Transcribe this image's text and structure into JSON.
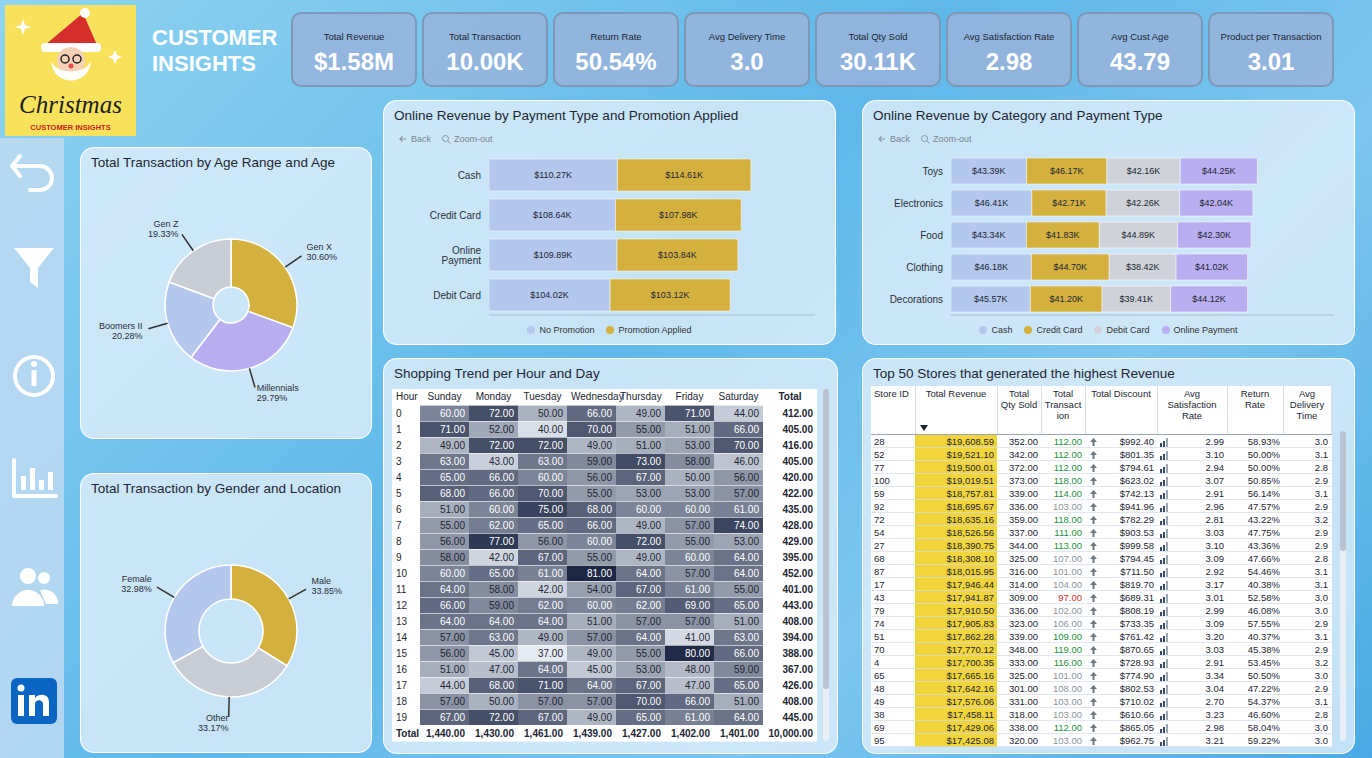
{
  "header": {
    "logo_title": "Christmas",
    "logo_subtitle": "CUSTOMER INSIGHTS",
    "title": "CUSTOMER INSIGHTS"
  },
  "kpis": [
    {
      "label": "Total Revenue",
      "value": "$1.58M"
    },
    {
      "label": "Total Transaction",
      "value": "10.00K"
    },
    {
      "label": "Return Rate",
      "value": "50.54%"
    },
    {
      "label": "Avg Delivery Time",
      "value": "3.0"
    },
    {
      "label": "Total Qty Sold",
      "value": "30.11K"
    },
    {
      "label": "Avg Satisfaction Rate",
      "value": "2.98"
    },
    {
      "label": "Avg Cust Age",
      "value": "43.79"
    },
    {
      "label": "Product per Transaction",
      "value": "3.01"
    }
  ],
  "chart_data": [
    {
      "type": "pie",
      "title": "Total Transaction by Age Range and Age",
      "categories": [
        "Gen X",
        "Millennials",
        "Boomers II",
        "Gen Z"
      ],
      "values": [
        30.6,
        29.79,
        20.28,
        19.33
      ],
      "value_labels": [
        "30.60%",
        "29.79%",
        "20.28%",
        "19.33%"
      ],
      "colors": [
        "#d4b13f",
        "#b9aef0",
        "#b3c8ec",
        "#c9ced6"
      ],
      "data_labels": true
    },
    {
      "type": "pie",
      "title": "Total Transaction by Gender and Location",
      "categories": [
        "Male",
        "Other",
        "Female"
      ],
      "values": [
        33.85,
        33.17,
        32.98
      ],
      "value_labels": [
        "33.85%",
        "33.17%",
        "32.98%"
      ],
      "colors": [
        "#d4b13f",
        "#c9ced6",
        "#b3c8ec"
      ],
      "data_labels": true
    },
    {
      "type": "bar",
      "orientation": "horizontal",
      "stacked": true,
      "title": "Online Revenue by Payment Type and Promotion Applied",
      "annotations": [
        "Back",
        "Zoom-out"
      ],
      "categories": [
        "Cash",
        "Credit Card",
        "Online Payment",
        "Debit Card"
      ],
      "series": [
        {
          "name": "No Promotion",
          "color": "#b3c8ec",
          "values": [
            110.27,
            108.64,
            109.89,
            104.02
          ],
          "value_labels": [
            "$110.27K",
            "$108.64K",
            "$109.89K",
            "$104.02K"
          ]
        },
        {
          "name": "Promotion Applied",
          "color": "#d4b13f",
          "values": [
            114.61,
            107.98,
            103.84,
            103.12
          ],
          "value_labels": [
            "$114.61K",
            "$107.98K",
            "$103.84K",
            "$103.12K"
          ]
        }
      ],
      "xlim": [
        0,
        280
      ],
      "tick_labels": "y",
      "data_labels": true,
      "legend": "bottom"
    },
    {
      "type": "bar",
      "orientation": "horizontal",
      "stacked": true,
      "title": "Online Revenue by Category and Payment Type",
      "annotations": [
        "Back",
        "Zoom-out"
      ],
      "categories": [
        "Toys",
        "Electronics",
        "Food",
        "Clothing",
        "Decorations"
      ],
      "series": [
        {
          "name": "Cash",
          "color": "#b3c8ec",
          "values": [
            43.39,
            46.41,
            43.34,
            46.18,
            45.57
          ],
          "value_labels": [
            "$43.39K",
            "$46.41K",
            "$43.34K",
            "$46.18K",
            "$45.57K"
          ]
        },
        {
          "name": "Credit Card",
          "color": "#d4b13f",
          "values": [
            46.17,
            42.71,
            41.83,
            44.7,
            41.2
          ],
          "value_labels": [
            "$46.17K",
            "$42.71K",
            "$41.83K",
            "$44.70K",
            "$41.20K"
          ]
        },
        {
          "name": "Debit Card",
          "color": "#cfd3d9",
          "values": [
            42.16,
            42.26,
            44.89,
            38.42,
            39.41
          ],
          "value_labels": [
            "$42.16K",
            "$42.26K",
            "$44.89K",
            "$38.42K",
            "$39.41K"
          ]
        },
        {
          "name": "Online Payment",
          "color": "#b9aef0",
          "values": [
            44.25,
            42.04,
            42.3,
            41.02,
            44.12
          ],
          "value_labels": [
            "$44.25K",
            "$42.04K",
            "$42.30K",
            "$41.02K",
            "$44.12K"
          ]
        }
      ],
      "xlim": [
        0,
        220
      ],
      "tick_labels": "y",
      "data_labels": true,
      "legend": "bottom"
    }
  ],
  "shopping_trend": {
    "title": "Shopping Trend per Hour and Day",
    "columns": [
      "Hour",
      "Sunday",
      "Monday",
      "Tuesday",
      "Wednesday",
      "Thursday",
      "Friday",
      "Saturday",
      "Total"
    ],
    "rows": [
      [
        "0",
        "60.00",
        "72.00",
        "50.00",
        "66.00",
        "49.00",
        "71.00",
        "44.00",
        "412.00"
      ],
      [
        "1",
        "71.00",
        "52.00",
        "40.00",
        "70.00",
        "55.00",
        "51.00",
        "66.00",
        "405.00"
      ],
      [
        "2",
        "49.00",
        "72.00",
        "72.00",
        "49.00",
        "51.00",
        "53.00",
        "70.00",
        "416.00"
      ],
      [
        "3",
        "63.00",
        "43.00",
        "63.00",
        "59.00",
        "73.00",
        "58.00",
        "46.00",
        "405.00"
      ],
      [
        "4",
        "65.00",
        "66.00",
        "60.00",
        "56.00",
        "67.00",
        "50.00",
        "56.00",
        "420.00"
      ],
      [
        "5",
        "68.00",
        "66.00",
        "70.00",
        "55.00",
        "53.00",
        "53.00",
        "57.00",
        "422.00"
      ],
      [
        "6",
        "51.00",
        "60.00",
        "75.00",
        "68.00",
        "60.00",
        "60.00",
        "61.00",
        "435.00"
      ],
      [
        "7",
        "55.00",
        "62.00",
        "65.00",
        "66.00",
        "49.00",
        "57.00",
        "74.00",
        "428.00"
      ],
      [
        "8",
        "56.00",
        "77.00",
        "56.00",
        "60.00",
        "72.00",
        "55.00",
        "53.00",
        "429.00"
      ],
      [
        "9",
        "58.00",
        "42.00",
        "67.00",
        "55.00",
        "49.00",
        "60.00",
        "64.00",
        "395.00"
      ],
      [
        "10",
        "60.00",
        "65.00",
        "61.00",
        "81.00",
        "64.00",
        "57.00",
        "64.00",
        "452.00"
      ],
      [
        "11",
        "64.00",
        "58.00",
        "42.00",
        "54.00",
        "67.00",
        "61.00",
        "55.00",
        "401.00"
      ],
      [
        "12",
        "66.00",
        "59.00",
        "62.00",
        "60.00",
        "62.00",
        "69.00",
        "65.00",
        "443.00"
      ],
      [
        "13",
        "64.00",
        "64.00",
        "64.00",
        "51.00",
        "57.00",
        "57.00",
        "51.00",
        "408.00"
      ],
      [
        "14",
        "57.00",
        "63.00",
        "49.00",
        "57.00",
        "64.00",
        "41.00",
        "63.00",
        "394.00"
      ],
      [
        "15",
        "56.00",
        "45.00",
        "37.00",
        "49.00",
        "55.00",
        "80.00",
        "66.00",
        "388.00"
      ],
      [
        "16",
        "51.00",
        "47.00",
        "64.00",
        "45.00",
        "53.00",
        "48.00",
        "59.00",
        "367.00"
      ],
      [
        "17",
        "44.00",
        "68.00",
        "71.00",
        "64.00",
        "67.00",
        "47.00",
        "65.00",
        "426.00"
      ],
      [
        "18",
        "57.00",
        "50.00",
        "57.00",
        "57.00",
        "70.00",
        "66.00",
        "51.00",
        "408.00"
      ],
      [
        "19",
        "67.00",
        "72.00",
        "67.00",
        "49.00",
        "65.00",
        "61.00",
        "64.00",
        "445.00"
      ]
    ],
    "total_row": [
      "Total",
      "1,440.00",
      "1,430.00",
      "1,461.00",
      "1,439.00",
      "1,427.00",
      "1,402.00",
      "1,401.00",
      "10,000.00"
    ]
  },
  "top_stores": {
    "title": "Top 50 Stores that generated the highest Revenue",
    "columns": [
      "Store ID",
      "Total Revenue",
      "Total Qty Sold",
      "Total Transaction",
      "Total Discount",
      "Avg Satisfaction Rate",
      "Return Rate",
      "Avg Delivery Time"
    ],
    "rows": [
      [
        "28",
        "$19,608.59",
        "352.00",
        "112.00",
        "$992.40",
        "2.99",
        "58.93%",
        "3.0"
      ],
      [
        "52",
        "$19,521.10",
        "342.00",
        "112.00",
        "$801.35",
        "3.10",
        "50.00%",
        "3.1"
      ],
      [
        "77",
        "$19,500.01",
        "372.00",
        "112.00",
        "$794.61",
        "2.94",
        "50.00%",
        "2.8"
      ],
      [
        "100",
        "$19,019.51",
        "373.00",
        "118.00",
        "$623.02",
        "3.07",
        "50.85%",
        "2.9"
      ],
      [
        "59",
        "$18,757.81",
        "339.00",
        "114.00",
        "$742.13",
        "2.91",
        "56.14%",
        "3.1"
      ],
      [
        "92",
        "$18,695.67",
        "336.00",
        "103.00",
        "$941.96",
        "2.96",
        "47.57%",
        "2.9"
      ],
      [
        "72",
        "$18,635.16",
        "359.00",
        "118.00",
        "$782.29",
        "2.81",
        "43.22%",
        "3.2"
      ],
      [
        "54",
        "$18,526.56",
        "337.00",
        "111.00",
        "$903.53",
        "3.03",
        "47.75%",
        "2.9"
      ],
      [
        "27",
        "$18,390.75",
        "344.00",
        "113.00",
        "$999.58",
        "3.10",
        "43.36%",
        "2.9"
      ],
      [
        "68",
        "$18,308.10",
        "325.00",
        "107.00",
        "$794.45",
        "3.09",
        "47.66%",
        "2.8"
      ],
      [
        "87",
        "$18,015.95",
        "316.00",
        "101.00",
        "$711.50",
        "2.92",
        "54.46%",
        "3.1"
      ],
      [
        "17",
        "$17,946.44",
        "314.00",
        "104.00",
        "$819.70",
        "3.17",
        "40.38%",
        "3.1"
      ],
      [
        "43",
        "$17,941.87",
        "309.00",
        "97.00",
        "$689.31",
        "3.01",
        "52.58%",
        "3.0"
      ],
      [
        "79",
        "$17,910.50",
        "336.00",
        "102.00",
        "$808.19",
        "2.99",
        "46.08%",
        "3.0"
      ],
      [
        "74",
        "$17,905.83",
        "323.00",
        "106.00",
        "$733.35",
        "3.09",
        "57.55%",
        "2.9"
      ],
      [
        "51",
        "$17,862.28",
        "339.00",
        "109.00",
        "$761.42",
        "3.20",
        "40.37%",
        "3.1"
      ],
      [
        "70",
        "$17,770.12",
        "348.00",
        "119.00",
        "$870.65",
        "3.03",
        "45.38%",
        "2.9"
      ],
      [
        "4",
        "$17,700.35",
        "333.00",
        "116.00",
        "$728.93",
        "2.91",
        "53.45%",
        "3.2"
      ],
      [
        "65",
        "$17,665.16",
        "325.00",
        "101.00",
        "$774.90",
        "3.34",
        "50.50%",
        "3.0"
      ],
      [
        "48",
        "$17,642.16",
        "301.00",
        "108.00",
        "$802.53",
        "3.04",
        "47.22%",
        "2.9"
      ],
      [
        "49",
        "$17,576.06",
        "331.00",
        "103.00",
        "$710.02",
        "2.70",
        "54.37%",
        "3.1"
      ],
      [
        "38",
        "$17,458.11",
        "318.00",
        "103.00",
        "$610.66",
        "3.23",
        "46.60%",
        "2.8"
      ],
      [
        "69",
        "$17,429.06",
        "338.00",
        "112.00",
        "$865.05",
        "2.98",
        "58.04%",
        "3.0"
      ],
      [
        "95",
        "$17,425.08",
        "320.00",
        "103.00",
        "$962.75",
        "3.21",
        "59.22%",
        "3.0"
      ]
    ]
  }
}
